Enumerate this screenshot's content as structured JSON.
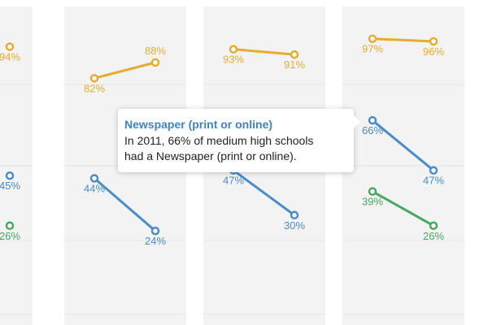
{
  "chart_data": {
    "type": "line",
    "y_domain": [
      0,
      100
    ],
    "colors": {
      "gold": "#e6ac2e",
      "blue": "#4b8cc9",
      "green": "#47a864"
    },
    "panels": [
      {
        "series": [
          {
            "color": "gold",
            "points": [
              {
                "y": 94,
                "label": "94%"
              }
            ]
          },
          {
            "color": "blue",
            "points": [
              {
                "y": 45,
                "label": "45%"
              }
            ]
          },
          {
            "color": "green",
            "points": [
              {
                "y": 26,
                "label": "26%"
              }
            ]
          }
        ]
      },
      {
        "series": [
          {
            "color": "gold",
            "points": [
              {
                "y": 82,
                "label": "82%"
              },
              {
                "y": 88,
                "label": "88%"
              }
            ]
          },
          {
            "color": "blue",
            "points": [
              {
                "y": 44,
                "label": "44%"
              },
              {
                "y": 24,
                "label": "24%"
              }
            ]
          }
        ]
      },
      {
        "series": [
          {
            "color": "gold",
            "points": [
              {
                "y": 93,
                "label": "93%"
              },
              {
                "y": 91,
                "label": "91%"
              }
            ]
          },
          {
            "color": "blue",
            "points": [
              {
                "y": 47,
                "label": "47%"
              },
              {
                "y": 30,
                "label": "30%"
              }
            ]
          }
        ]
      },
      {
        "series": [
          {
            "color": "gold",
            "points": [
              {
                "y": 97,
                "label": "97%"
              },
              {
                "y": 96,
                "label": "96%"
              }
            ]
          },
          {
            "color": "blue",
            "points": [
              {
                "y": 66,
                "label": "66%"
              },
              {
                "y": 47,
                "label": "47%"
              }
            ]
          },
          {
            "color": "green",
            "points": [
              {
                "y": 39,
                "label": "39%"
              },
              {
                "y": 26,
                "label": "26%"
              }
            ]
          }
        ]
      }
    ]
  },
  "tooltip": {
    "title": "Newspaper (print or online)",
    "line1": "In 2011, 66% of medium high schools",
    "line2": "had a Newspaper (print or online)."
  }
}
